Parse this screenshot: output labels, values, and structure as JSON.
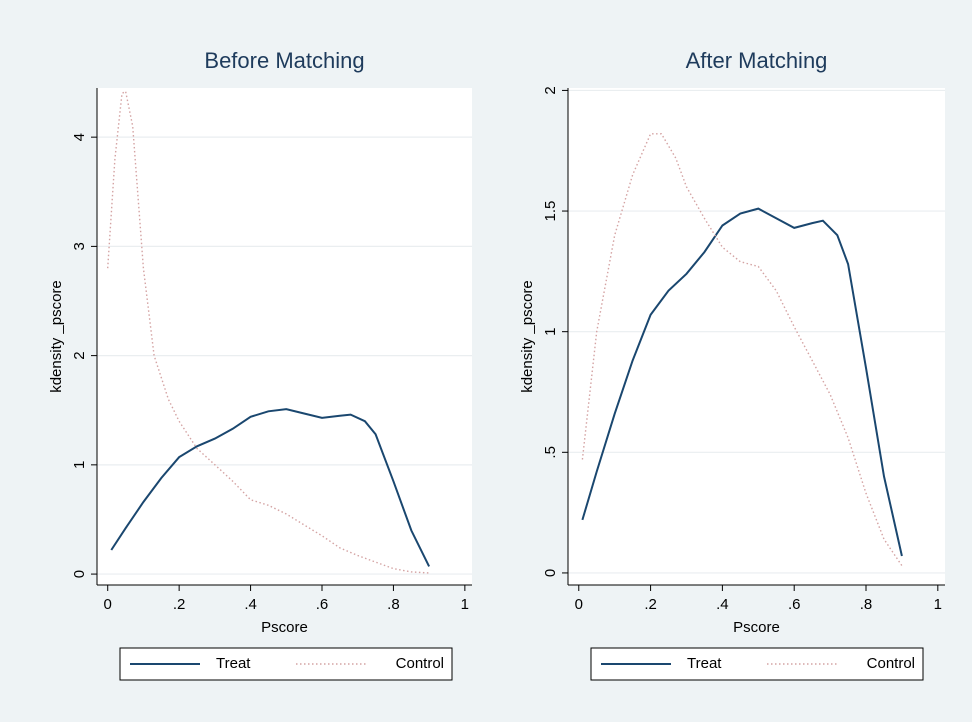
{
  "chart_data": [
    {
      "type": "line",
      "title": "Before Matching",
      "x_label": "Pscore",
      "y_label": "kdensity _pscore",
      "xlim": [
        -0.03,
        1.02
      ],
      "ylim": [
        -0.1,
        4.45
      ],
      "xticks": [
        0,
        {
          "value": 0.2,
          "label": ".2"
        },
        {
          "value": 0.4,
          "label": ".4"
        },
        {
          "value": 0.6,
          "label": ".6"
        },
        {
          "value": 0.8,
          "label": ".8"
        },
        1
      ],
      "yticks": [
        0,
        1,
        2,
        3,
        4
      ],
      "grid": true,
      "legend": "bottom",
      "series": [
        {
          "name": "Treat",
          "color": "#1a476f",
          "style": "solid",
          "x": [
            0.01,
            0.05,
            0.1,
            0.15,
            0.2,
            0.25,
            0.3,
            0.35,
            0.4,
            0.45,
            0.5,
            0.55,
            0.6,
            0.65,
            0.68,
            0.72,
            0.75,
            0.8,
            0.85,
            0.9
          ],
          "values": [
            0.22,
            0.42,
            0.66,
            0.88,
            1.07,
            1.17,
            1.24,
            1.33,
            1.44,
            1.49,
            1.51,
            1.47,
            1.43,
            1.45,
            1.46,
            1.4,
            1.28,
            0.85,
            0.4,
            0.07
          ]
        },
        {
          "name": "Control",
          "color": "#d4a3a3",
          "style": "dotted",
          "x": [
            0,
            0.02,
            0.04,
            0.05,
            0.07,
            0.1,
            0.13,
            0.17,
            0.2,
            0.25,
            0.3,
            0.35,
            0.4,
            0.45,
            0.5,
            0.55,
            0.6,
            0.65,
            0.7,
            0.75,
            0.8,
            0.85,
            0.9
          ],
          "values": [
            2.8,
            3.8,
            4.4,
            4.42,
            4.1,
            2.8,
            2.0,
            1.6,
            1.4,
            1.15,
            1.0,
            0.85,
            0.68,
            0.63,
            0.55,
            0.45,
            0.35,
            0.24,
            0.17,
            0.11,
            0.05,
            0.02,
            0.01
          ]
        }
      ]
    },
    {
      "type": "line",
      "title": "After Matching",
      "x_label": "Pscore",
      "y_label": "kdensity _pscore",
      "xlim": [
        -0.03,
        1.02
      ],
      "ylim": [
        -0.05,
        2.01
      ],
      "xticks": [
        0,
        {
          "value": 0.2,
          "label": ".2"
        },
        {
          "value": 0.4,
          "label": ".4"
        },
        {
          "value": 0.6,
          "label": ".6"
        },
        {
          "value": 0.8,
          "label": ".8"
        },
        1
      ],
      "yticks": [
        0,
        {
          "value": 0.5,
          "label": ".5"
        },
        1,
        {
          "value": 1.5,
          "label": "1.5"
        },
        2
      ],
      "grid": true,
      "legend": "bottom",
      "series": [
        {
          "name": "Treat",
          "color": "#1a476f",
          "style": "solid",
          "x": [
            0.01,
            0.05,
            0.1,
            0.15,
            0.2,
            0.25,
            0.3,
            0.35,
            0.4,
            0.45,
            0.5,
            0.55,
            0.6,
            0.65,
            0.68,
            0.72,
            0.75,
            0.8,
            0.85,
            0.9
          ],
          "values": [
            0.22,
            0.42,
            0.66,
            0.88,
            1.07,
            1.17,
            1.24,
            1.33,
            1.44,
            1.49,
            1.51,
            1.47,
            1.43,
            1.45,
            1.46,
            1.4,
            1.28,
            0.85,
            0.4,
            0.07
          ]
        },
        {
          "name": "Control",
          "color": "#d4a3a3",
          "style": "dotted",
          "x": [
            0.01,
            0.05,
            0.1,
            0.15,
            0.2,
            0.23,
            0.27,
            0.3,
            0.35,
            0.4,
            0.45,
            0.5,
            0.55,
            0.6,
            0.65,
            0.7,
            0.75,
            0.8,
            0.85,
            0.9
          ],
          "values": [
            0.47,
            1.0,
            1.4,
            1.65,
            1.82,
            1.82,
            1.72,
            1.6,
            1.47,
            1.35,
            1.29,
            1.27,
            1.17,
            1.02,
            0.88,
            0.74,
            0.56,
            0.33,
            0.14,
            0.03
          ]
        }
      ]
    }
  ]
}
